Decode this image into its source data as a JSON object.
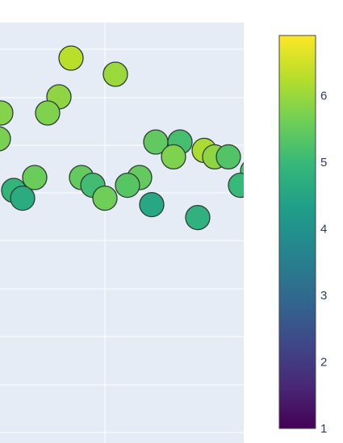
{
  "chart_data": {
    "type": "scatter",
    "title": "",
    "xlabel": "",
    "ylabel": "",
    "grid": true,
    "colorscale": "viridis",
    "colorbar": {
      "range": [
        1,
        6.9
      ],
      "tick_labels": [
        "1",
        "2",
        "3",
        "4",
        "5",
        "6"
      ],
      "placement": "right"
    },
    "points": [
      {
        "x": 0.85,
        "y": 7.15,
        "c": 6.3
      },
      {
        "x": 1.4,
        "y": 6.9,
        "c": 6.0
      },
      {
        "x": 0.7,
        "y": 6.55,
        "c": 5.9
      },
      {
        "x": -0.02,
        "y": 6.3,
        "c": 5.8
      },
      {
        "x": 0.56,
        "y": 6.3,
        "c": 5.75
      },
      {
        "x": -0.05,
        "y": 5.9,
        "c": 5.7
      },
      {
        "x": 1.9,
        "y": 5.85,
        "c": 5.45
      },
      {
        "x": 2.2,
        "y": 5.85,
        "c": 5.15
      },
      {
        "x": 2.5,
        "y": 5.72,
        "c": 6.15
      },
      {
        "x": 2.63,
        "y": 5.62,
        "c": 5.9
      },
      {
        "x": 2.12,
        "y": 5.62,
        "c": 5.75
      },
      {
        "x": 2.8,
        "y": 5.62,
        "c": 5.3
      },
      {
        "x": 3.1,
        "y": 5.4,
        "c": 5.2
      },
      {
        "x": 0.4,
        "y": 5.3,
        "c": 5.55
      },
      {
        "x": 0.98,
        "y": 5.3,
        "c": 5.5
      },
      {
        "x": 1.7,
        "y": 5.3,
        "c": 5.5
      },
      {
        "x": 0.14,
        "y": 5.1,
        "c": 4.9
      },
      {
        "x": 1.12,
        "y": 5.18,
        "c": 5.1
      },
      {
        "x": 1.55,
        "y": 5.18,
        "c": 5.35
      },
      {
        "x": 2.95,
        "y": 5.18,
        "c": 5.0
      },
      {
        "x": 3.25,
        "y": 5.12,
        "c": 5.35
      },
      {
        "x": 0.25,
        "y": 4.98,
        "c": 4.65
      },
      {
        "x": 1.27,
        "y": 4.98,
        "c": 5.6
      },
      {
        "x": 1.85,
        "y": 4.88,
        "c": 4.55
      },
      {
        "x": 3.42,
        "y": 4.78,
        "c": 5.0
      },
      {
        "x": 2.42,
        "y": 4.68,
        "c": 4.8
      }
    ]
  }
}
